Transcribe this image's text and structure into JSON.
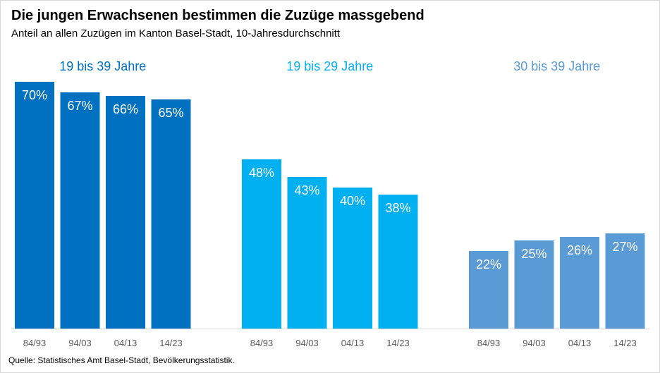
{
  "chart_data": {
    "type": "bar",
    "title": "Die jungen Erwachsenen bestimmen die Zuzüge massgebend",
    "subtitle": "Anteil an allen Zuzügen im Kanton Basel-Stadt, 10-Jahresdurchschnitt",
    "source": "Quelle: Statistisches Amt Basel-Stadt, Bevölkerungsstatistik.",
    "categories": [
      "84/93",
      "94/03",
      "04/13",
      "14/23"
    ],
    "ylim": [
      0,
      100
    ],
    "unit": "%",
    "grid": false,
    "groups": [
      {
        "name": "19 bis 39 Jahre",
        "color": "#0070c0",
        "values": [
          70,
          67,
          66,
          65
        ]
      },
      {
        "name": "19 bis 29 Jahre",
        "color": "#00b0f0",
        "values": [
          48,
          43,
          40,
          38
        ]
      },
      {
        "name": "30 bis 39 Jahre",
        "color": "#5b9bd5",
        "values": [
          22,
          25,
          26,
          27
        ]
      }
    ]
  }
}
